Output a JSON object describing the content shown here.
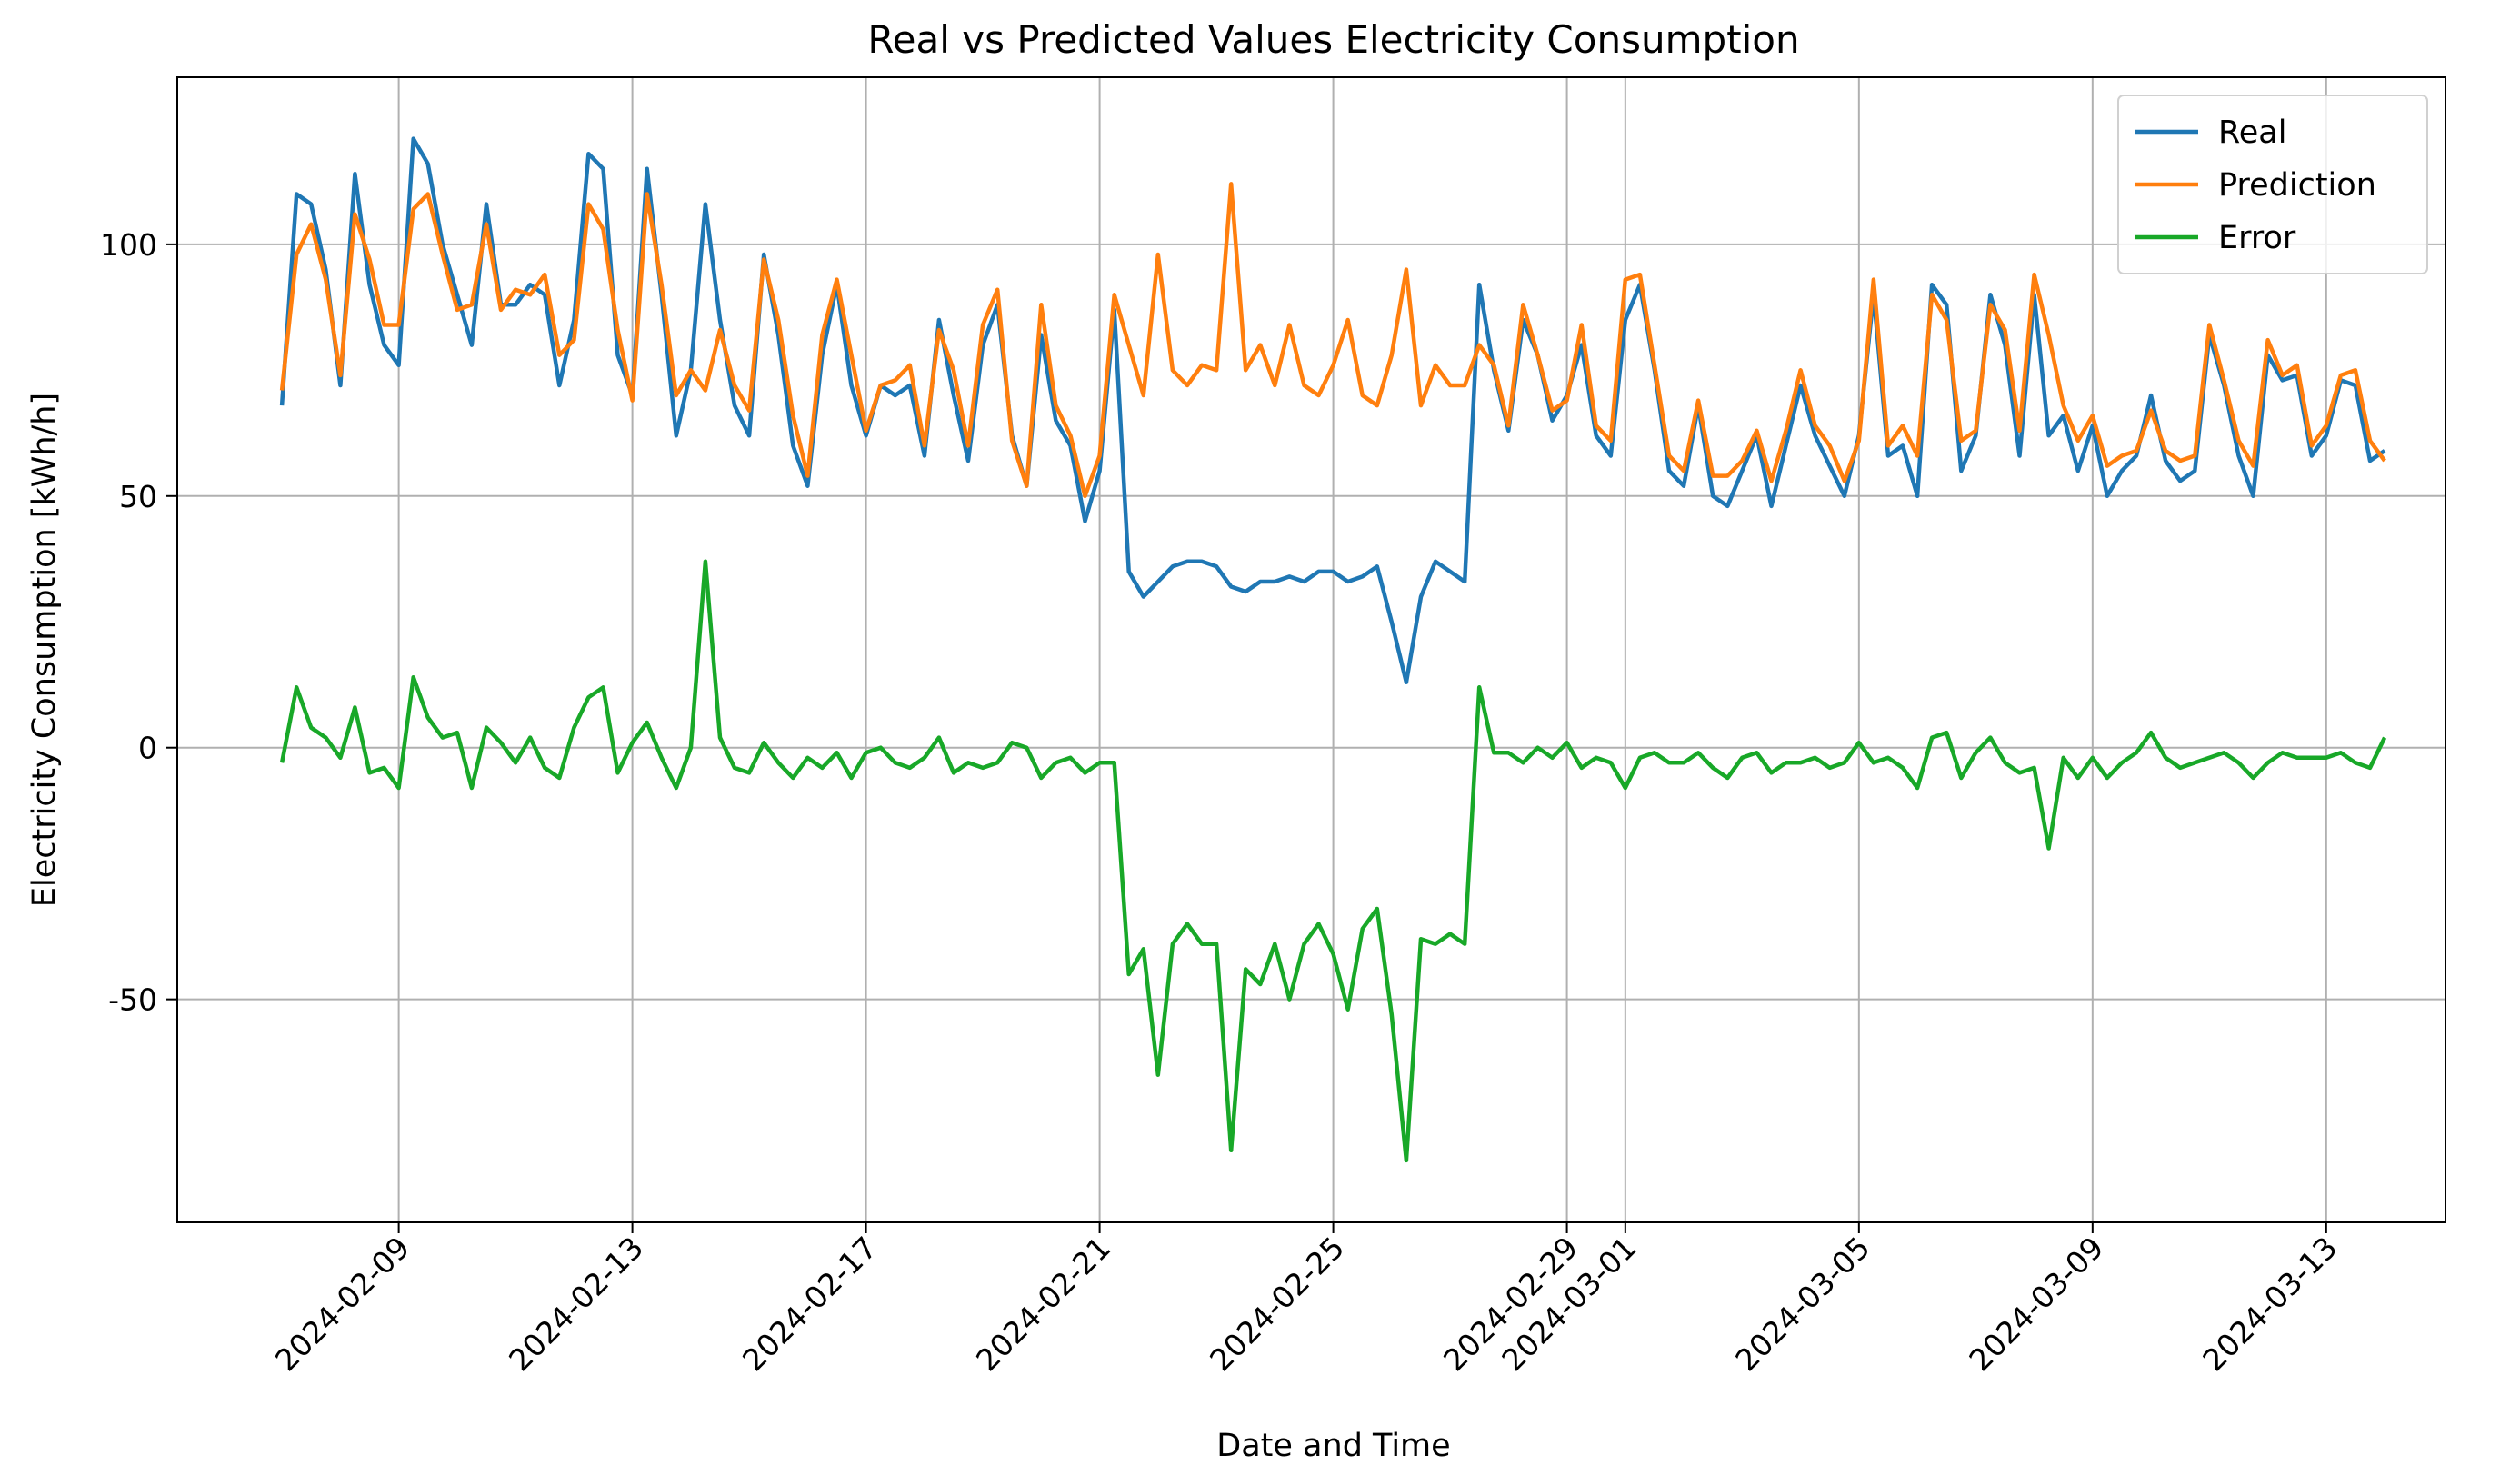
{
  "chart_data": {
    "type": "line",
    "title": "Real vs Predicted Values Electricity Consumption",
    "xlabel": "Date and Time",
    "ylabel": "Electricity Consumption [kWh/h]",
    "x": [
      "2024-02-07T00:00",
      "2024-02-07T06:00",
      "2024-02-07T12:00",
      "2024-02-07T18:00",
      "2024-02-08T00:00",
      "2024-02-08T06:00",
      "2024-02-08T12:00",
      "2024-02-08T18:00",
      "2024-02-09T00:00",
      "2024-02-09T06:00",
      "2024-02-09T12:00",
      "2024-02-09T18:00",
      "2024-02-10T00:00",
      "2024-02-10T06:00",
      "2024-02-10T12:00",
      "2024-02-10T18:00",
      "2024-02-11T00:00",
      "2024-02-11T06:00",
      "2024-02-11T12:00",
      "2024-02-11T18:00",
      "2024-02-12T00:00",
      "2024-02-12T06:00",
      "2024-02-12T12:00",
      "2024-02-12T18:00",
      "2024-02-13T00:00",
      "2024-02-13T06:00",
      "2024-02-13T12:00",
      "2024-02-13T18:00",
      "2024-02-14T00:00",
      "2024-02-14T06:00",
      "2024-02-14T12:00",
      "2024-02-14T18:00",
      "2024-02-15T00:00",
      "2024-02-15T06:00",
      "2024-02-15T12:00",
      "2024-02-15T18:00",
      "2024-02-16T00:00",
      "2024-02-16T06:00",
      "2024-02-16T12:00",
      "2024-02-16T18:00",
      "2024-02-17T00:00",
      "2024-02-17T06:00",
      "2024-02-17T12:00",
      "2024-02-17T18:00",
      "2024-02-18T00:00",
      "2024-02-18T06:00",
      "2024-02-18T12:00",
      "2024-02-18T18:00",
      "2024-02-19T00:00",
      "2024-02-19T06:00",
      "2024-02-19T12:00",
      "2024-02-19T18:00",
      "2024-02-20T00:00",
      "2024-02-20T06:00",
      "2024-02-20T12:00",
      "2024-02-20T18:00",
      "2024-02-21T00:00",
      "2024-02-21T06:00",
      "2024-02-21T12:00",
      "2024-02-21T18:00",
      "2024-02-22T00:00",
      "2024-02-22T06:00",
      "2024-02-22T12:00",
      "2024-02-22T18:00",
      "2024-02-23T00:00",
      "2024-02-23T06:00",
      "2024-02-23T12:00",
      "2024-02-23T18:00",
      "2024-02-24T00:00",
      "2024-02-24T06:00",
      "2024-02-24T12:00",
      "2024-02-24T18:00",
      "2024-02-25T00:00",
      "2024-02-25T06:00",
      "2024-02-25T12:00",
      "2024-02-25T18:00",
      "2024-02-26T00:00",
      "2024-02-26T06:00",
      "2024-02-26T12:00",
      "2024-02-26T18:00",
      "2024-02-27T00:00",
      "2024-02-27T06:00",
      "2024-02-27T12:00",
      "2024-02-27T18:00",
      "2024-02-28T00:00",
      "2024-02-28T06:00",
      "2024-02-28T12:00",
      "2024-02-28T18:00",
      "2024-02-29T00:00",
      "2024-02-29T06:00",
      "2024-02-29T12:00",
      "2024-02-29T18:00",
      "2024-03-01T00:00",
      "2024-03-01T06:00",
      "2024-03-01T12:00",
      "2024-03-01T18:00",
      "2024-03-02T00:00",
      "2024-03-02T06:00",
      "2024-03-02T12:00",
      "2024-03-02T18:00",
      "2024-03-03T00:00",
      "2024-03-03T06:00",
      "2024-03-03T12:00",
      "2024-03-03T18:00",
      "2024-03-04T00:00",
      "2024-03-04T06:00",
      "2024-03-04T12:00",
      "2024-03-04T18:00",
      "2024-03-05T00:00",
      "2024-03-05T06:00",
      "2024-03-05T12:00",
      "2024-03-05T18:00",
      "2024-03-06T00:00",
      "2024-03-06T06:00",
      "2024-03-06T12:00",
      "2024-03-06T18:00",
      "2024-03-07T00:00",
      "2024-03-07T06:00",
      "2024-03-07T12:00",
      "2024-03-07T18:00",
      "2024-03-08T00:00",
      "2024-03-08T06:00",
      "2024-03-08T12:00",
      "2024-03-08T18:00",
      "2024-03-09T00:00",
      "2024-03-09T06:00",
      "2024-03-09T12:00",
      "2024-03-09T18:00",
      "2024-03-10T00:00",
      "2024-03-10T06:00",
      "2024-03-10T12:00",
      "2024-03-10T18:00",
      "2024-03-11T00:00",
      "2024-03-11T06:00",
      "2024-03-11T12:00",
      "2024-03-11T18:00",
      "2024-03-12T00:00",
      "2024-03-12T06:00",
      "2024-03-12T12:00",
      "2024-03-12T18:00",
      "2024-03-13T00:00",
      "2024-03-13T06:00",
      "2024-03-13T12:00",
      "2024-03-13T18:00",
      "2024-03-14T00:00"
    ],
    "series": [
      {
        "name": "Real",
        "color": "#1f77b4",
        "values": [
          68,
          110,
          108,
          95,
          72,
          114,
          92,
          80,
          76,
          121,
          116,
          100,
          90,
          80,
          108,
          88,
          88,
          92,
          90,
          72,
          85,
          118,
          115,
          78,
          70,
          115,
          90,
          62,
          75,
          108,
          85,
          68,
          62,
          98,
          82,
          60,
          52,
          78,
          92,
          72,
          62,
          72,
          70,
          72,
          58,
          85,
          70,
          57,
          80,
          88,
          62,
          52,
          82,
          65,
          60,
          45,
          55,
          87,
          35,
          30,
          33,
          36,
          37,
          37,
          36,
          32,
          31,
          33,
          33,
          34,
          33,
          35,
          35,
          33,
          34,
          36,
          25,
          13,
          30,
          37,
          35,
          33,
          92,
          75,
          63,
          85,
          78,
          65,
          70,
          80,
          62,
          58,
          85,
          92,
          75,
          55,
          52,
          68,
          50,
          48,
          55,
          62,
          48,
          60,
          72,
          62,
          56,
          50,
          62,
          90,
          58,
          60,
          50,
          92,
          88,
          55,
          62,
          90,
          80,
          58,
          90,
          62,
          66,
          55,
          64,
          50,
          55,
          58,
          70,
          57,
          53,
          55,
          82,
          72,
          58,
          50,
          78,
          73,
          74,
          58,
          62,
          73,
          72,
          57,
          59
        ]
      },
      {
        "name": "Prediction",
        "color": "#ff7f0e",
        "values": [
          71,
          98,
          104,
          93,
          74,
          106,
          97,
          84,
          84,
          107,
          110,
          98,
          87,
          88,
          104,
          87,
          91,
          90,
          94,
          78,
          81,
          108,
          103,
          83,
          69,
          110,
          92,
          70,
          75,
          71,
          83,
          72,
          67,
          97,
          85,
          66,
          54,
          82,
          93,
          78,
          63,
          72,
          73,
          76,
          60,
          83,
          75,
          60,
          84,
          91,
          61,
          52,
          88,
          68,
          62,
          50,
          58,
          90,
          80,
          70,
          98,
          75,
          72,
          76,
          75,
          112,
          75,
          80,
          72,
          84,
          72,
          70,
          76,
          85,
          70,
          68,
          78,
          95,
          68,
          76,
          72,
          72,
          80,
          76,
          64,
          88,
          78,
          67,
          69,
          84,
          64,
          61,
          93,
          94,
          76,
          58,
          55,
          69,
          54,
          54,
          57,
          63,
          53,
          63,
          75,
          64,
          60,
          53,
          61,
          93,
          60,
          64,
          58,
          90,
          85,
          61,
          63,
          88,
          83,
          63,
          94,
          82,
          68,
          61,
          66,
          56,
          58,
          59,
          67,
          59,
          57,
          58,
          84,
          73,
          61,
          56,
          81,
          74,
          76,
          60,
          64,
          74,
          75,
          61,
          57
        ]
      },
      {
        "name": "Error",
        "color": "#18a828",
        "values": [
          -3,
          12,
          4,
          2,
          -2,
          8,
          -5,
          -4,
          -8,
          14,
          6,
          2,
          3,
          -8,
          4,
          1,
          -3,
          2,
          -4,
          -6,
          4,
          10,
          12,
          -5,
          1,
          5,
          -2,
          -8,
          0,
          37,
          2,
          -4,
          -5,
          1,
          -3,
          -6,
          -2,
          -4,
          -1,
          -6,
          -1,
          0,
          -3,
          -4,
          -2,
          2,
          -5,
          -3,
          -4,
          -3,
          1,
          0,
          -6,
          -3,
          -2,
          -5,
          -3,
          -3,
          -45,
          -40,
          -65,
          -39,
          -35,
          -39,
          -39,
          -80,
          -44,
          -47,
          -39,
          -50,
          -39,
          -35,
          -41,
          -52,
          -36,
          -32,
          -53,
          -82,
          -38,
          -39,
          -37,
          -39,
          12,
          -1,
          -1,
          -3,
          0,
          -2,
          1,
          -4,
          -2,
          -3,
          -8,
          -2,
          -1,
          -3,
          -3,
          -1,
          -4,
          -6,
          -2,
          -1,
          -5,
          -3,
          -3,
          -2,
          -4,
          -3,
          1,
          -3,
          -2,
          -4,
          -8,
          2,
          3,
          -6,
          -1,
          2,
          -3,
          -5,
          -4,
          -20,
          -2,
          -6,
          -2,
          -6,
          -3,
          -1,
          3,
          -2,
          -4,
          -3,
          -2,
          -1,
          -3,
          -6,
          -3,
          -1,
          -2,
          -2,
          -2,
          -1,
          -3,
          -4,
          2
        ]
      }
    ],
    "xlim": [
      "2024-02-05T05:00",
      "2024-03-15T01:00"
    ],
    "xticks": [
      "2024-02-09",
      "2024-02-13",
      "2024-02-17",
      "2024-02-21",
      "2024-02-25",
      "2024-02-29",
      "2024-03-01",
      "2024-03-05",
      "2024-03-09",
      "2024-03-13"
    ],
    "ylim": [
      -94.3,
      133.2
    ],
    "yticks": [
      -50,
      0,
      50,
      100
    ],
    "grid": true,
    "legend": "upper right"
  }
}
